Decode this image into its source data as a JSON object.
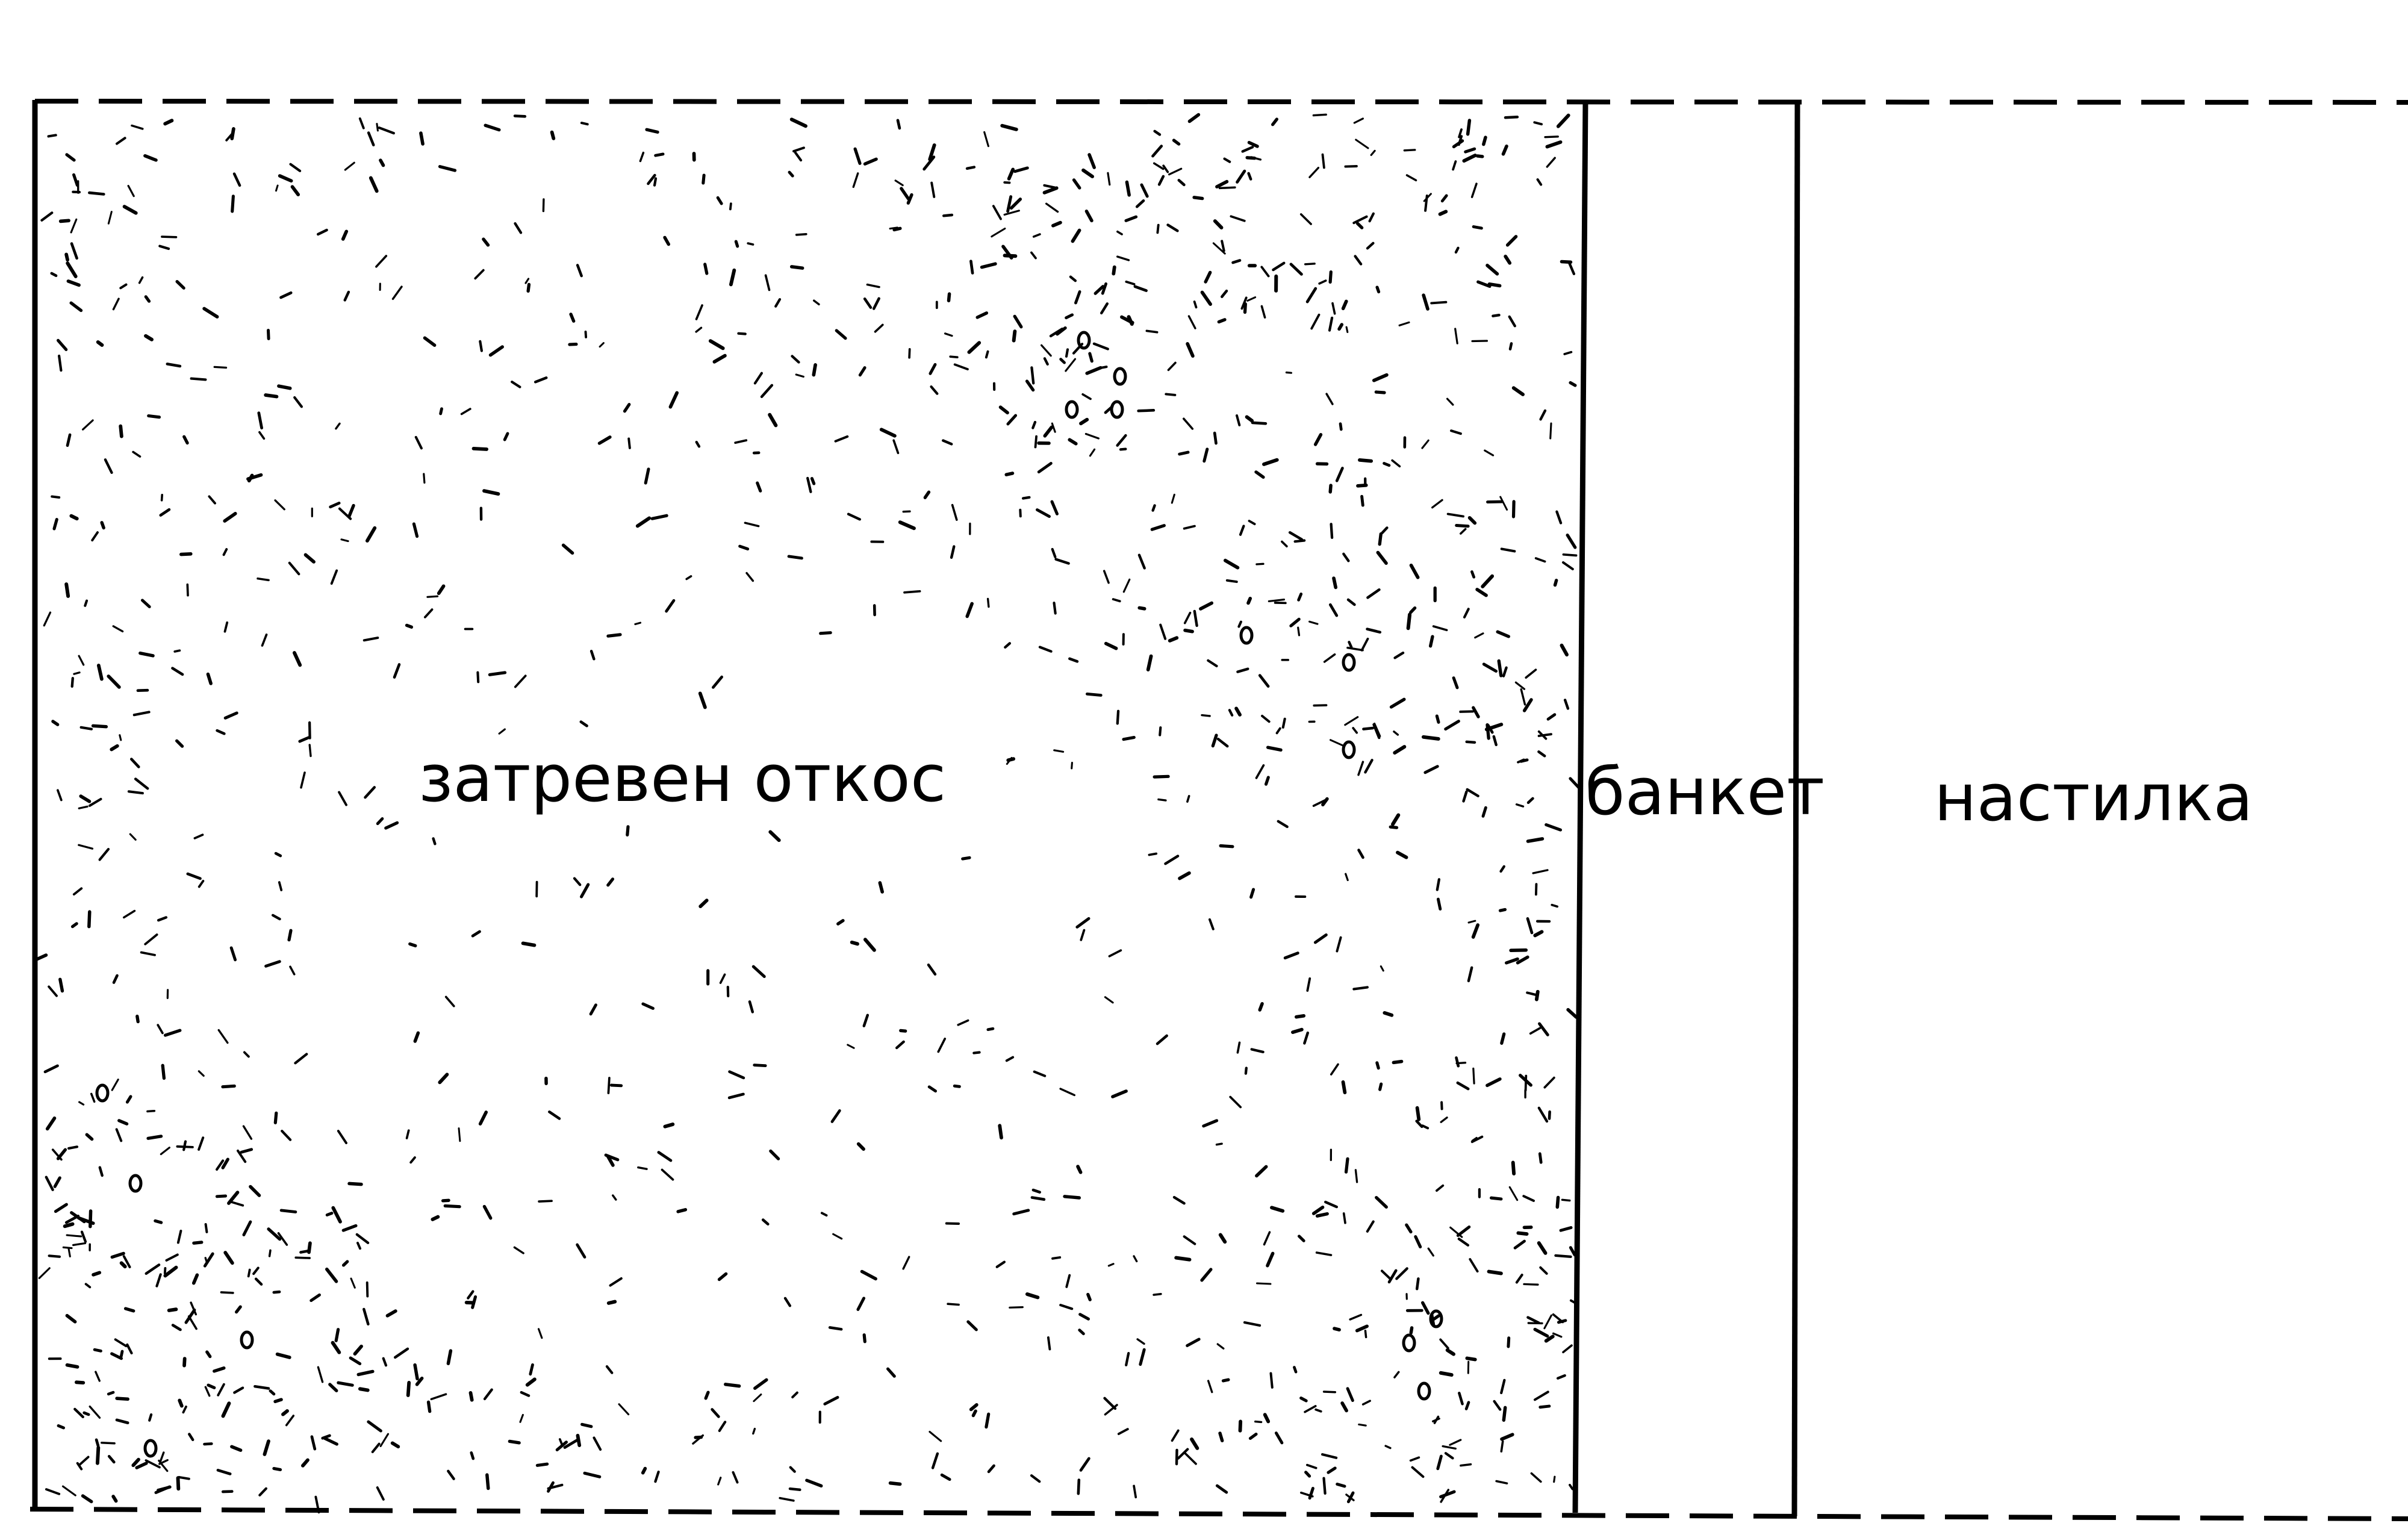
{
  "zones": {
    "slope": {
      "label": "затревен откос"
    },
    "berm": {
      "label": "банкет"
    },
    "pavement": {
      "label": "настилка"
    }
  },
  "colors": {
    "ink": "#000000",
    "paper": "#ffffff"
  }
}
